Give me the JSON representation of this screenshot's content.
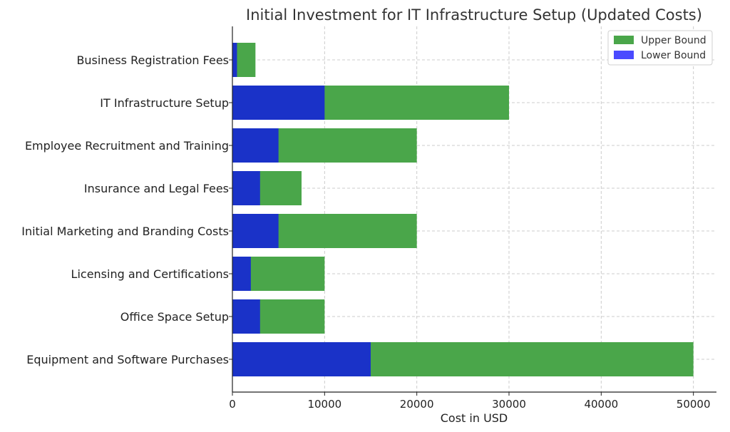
{
  "chart_data": {
    "type": "bar",
    "orientation": "horizontal",
    "stacked": "overlay",
    "title": "Initial Investment for IT Infrastructure Setup (Updated Costs)",
    "xlabel": "Cost in USD",
    "ylabel": "",
    "xlim": [
      0,
      52500
    ],
    "xticks": [
      0,
      10000,
      20000,
      30000,
      40000,
      50000
    ],
    "grid": true,
    "legend_position": "top-right",
    "categories": [
      "Business Registration Fees",
      "IT Infrastructure Setup",
      "Employee Recruitment and Training",
      "Insurance and Legal Fees",
      "Initial Marketing and Branding Costs",
      "Licensing and Certifications",
      "Office Space Setup",
      "Equipment and Software Purchases"
    ],
    "series": [
      {
        "name": "Upper Bound",
        "color": "#4aa64a",
        "values": [
          2500,
          30000,
          20000,
          7500,
          20000,
          10000,
          10000,
          50000
        ]
      },
      {
        "name": "Lower Bound",
        "color": "#1a32c8",
        "legend_color": "#4a4aff",
        "values": [
          500,
          10000,
          5000,
          3000,
          5000,
          2000,
          3000,
          15000
        ]
      }
    ]
  }
}
